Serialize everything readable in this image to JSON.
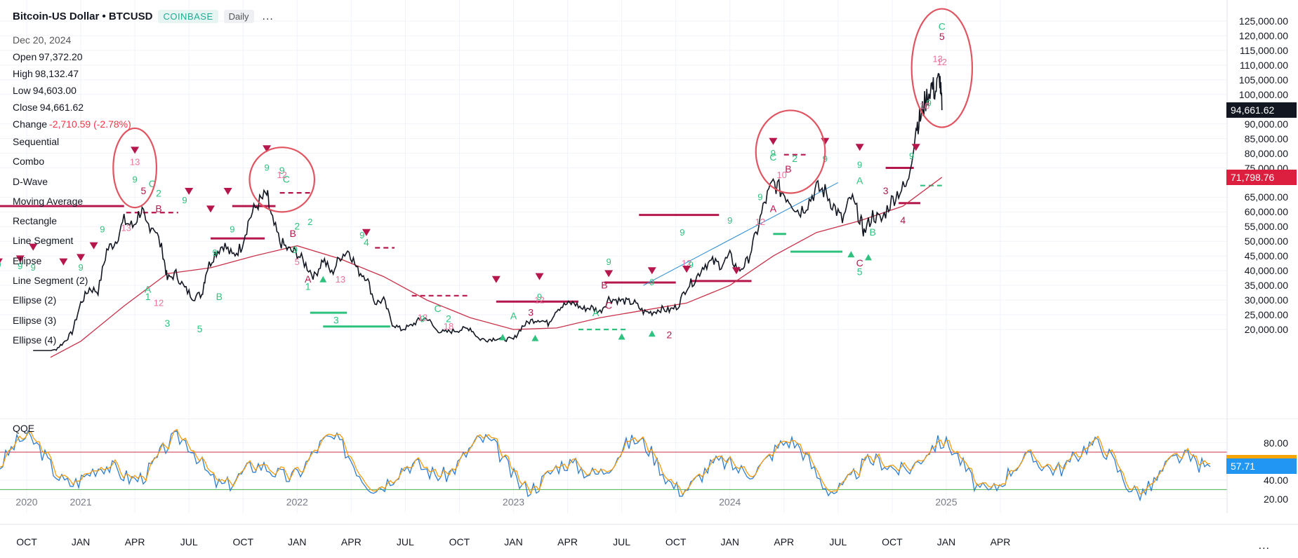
{
  "header": {
    "symbol_title": "Bitcoin-US Dollar • BTCUSD",
    "exchange_badge": "COINBASE",
    "interval_badge": "Daily",
    "more_label": "..."
  },
  "ohlc": {
    "date": "Dec 20, 2024",
    "open_label": "Open",
    "open_value": "97,372.20",
    "high_label": "High",
    "high_value": "98,132.47",
    "low_label": "Low",
    "low_value": "94,603.00",
    "close_label": "Close",
    "close_value": "94,661.62",
    "change_label": "Change",
    "change_value": "-2,710.59 (-2.78%)"
  },
  "indicators": [
    "Sequential",
    "Combo",
    "D-Wave",
    "Moving Average",
    "Rectangle",
    "Line Segment",
    "Ellipse",
    "Line Segment (2)",
    "Ellipse (2)",
    "Ellipse (3)",
    "Ellipse (4)"
  ],
  "price_axis": {
    "ticks": [
      "125,000.00",
      "120,000.00",
      "115,000.00",
      "110,000.00",
      "105,000.00",
      "100,000.00",
      "90,000.00",
      "85,000.00",
      "80,000.00",
      "75,000.00",
      "65,000.00",
      "60,000.00",
      "55,000.00",
      "50,000.00",
      "45,000.00",
      "40,000.00",
      "35,000.00",
      "30,000.00",
      "25,000.00",
      "20,000.00"
    ],
    "tick_values": [
      125000,
      120000,
      115000,
      110000,
      105000,
      100000,
      90000,
      85000,
      80000,
      75000,
      65000,
      60000,
      55000,
      50000,
      45000,
      40000,
      35000,
      30000,
      25000,
      20000
    ],
    "last_price": "94,661.62",
    "ma_value": "71,798.76"
  },
  "oscillator": {
    "name": "QQE",
    "ticks": [
      "80.00",
      "40.00",
      "20.00"
    ],
    "tick_values": [
      80,
      40,
      20
    ],
    "value_label": "57.71",
    "value": 57.71,
    "upper_level": 70,
    "lower_level": 30
  },
  "time_axis": {
    "labels": [
      "OCT",
      "JAN",
      "APR",
      "JUL",
      "OCT",
      "JAN",
      "APR",
      "JUL",
      "OCT",
      "JAN",
      "APR",
      "JUL",
      "OCT",
      "JAN",
      "APR",
      "JUL",
      "OCT",
      "JAN",
      "APR"
    ],
    "year_labels": [
      "2020",
      "2021",
      "2022",
      "2023",
      "2024",
      "2025"
    ],
    "menu": "..."
  },
  "colors": {
    "price": "#131722",
    "ma": "#c8324a",
    "bullish": "#2ec27e",
    "bearish": "#b5174d",
    "setup_pink": "#e8749a",
    "ellipse": "#e05561",
    "qqe_fast": "#f39c12",
    "qqe_slow": "#2d7dd2",
    "level_upper": "#c8324a",
    "level_lower": "#4caf50"
  },
  "price_path": [
    [
      2020.78,
      10500
    ],
    [
      2020.83,
      11300
    ],
    [
      2020.88,
      13000
    ],
    [
      2020.92,
      15500
    ],
    [
      2020.96,
      19000
    ],
    [
      2021.0,
      29000
    ],
    [
      2021.04,
      34000
    ],
    [
      2021.08,
      33000
    ],
    [
      2021.12,
      47000
    ],
    [
      2021.16,
      50000
    ],
    [
      2021.2,
      57000
    ],
    [
      2021.24,
      55000
    ],
    [
      2021.28,
      61000
    ],
    [
      2021.3,
      56000
    ],
    [
      2021.34,
      55000
    ],
    [
      2021.38,
      46000
    ],
    [
      2021.4,
      37000
    ],
    [
      2021.44,
      39000
    ],
    [
      2021.48,
      34000
    ],
    [
      2021.52,
      31000
    ],
    [
      2021.56,
      32000
    ],
    [
      2021.58,
      40000
    ],
    [
      2021.62,
      46000
    ],
    [
      2021.66,
      49000
    ],
    [
      2021.7,
      45000
    ],
    [
      2021.74,
      48000
    ],
    [
      2021.78,
      58000
    ],
    [
      2021.82,
      63000
    ],
    [
      2021.86,
      66000
    ],
    [
      2021.88,
      58000
    ],
    [
      2021.92,
      50000
    ],
    [
      2021.96,
      47000
    ],
    [
      2022.0,
      46000
    ],
    [
      2022.04,
      42000
    ],
    [
      2022.08,
      38000
    ],
    [
      2022.12,
      44000
    ],
    [
      2022.16,
      39000
    ],
    [
      2022.2,
      45000
    ],
    [
      2022.24,
      47000
    ],
    [
      2022.28,
      40000
    ],
    [
      2022.32,
      38000
    ],
    [
      2022.36,
      29000
    ],
    [
      2022.4,
      30000
    ],
    [
      2022.44,
      22000
    ],
    [
      2022.48,
      20000
    ],
    [
      2022.52,
      21000
    ],
    [
      2022.56,
      23000
    ],
    [
      2022.6,
      24000
    ],
    [
      2022.64,
      20000
    ],
    [
      2022.68,
      19000
    ],
    [
      2022.72,
      19500
    ],
    [
      2022.76,
      20000
    ],
    [
      2022.8,
      20500
    ],
    [
      2022.84,
      16800
    ],
    [
      2022.88,
      16500
    ],
    [
      2022.92,
      17000
    ],
    [
      2022.96,
      16700
    ],
    [
      2023.0,
      16600
    ],
    [
      2023.04,
      21000
    ],
    [
      2023.08,
      23000
    ],
    [
      2023.12,
      23500
    ],
    [
      2023.16,
      22000
    ],
    [
      2023.2,
      27000
    ],
    [
      2023.24,
      28500
    ],
    [
      2023.28,
      29000
    ],
    [
      2023.32,
      27000
    ],
    [
      2023.36,
      27500
    ],
    [
      2023.4,
      26000
    ],
    [
      2023.44,
      30500
    ],
    [
      2023.48,
      30000
    ],
    [
      2023.52,
      29500
    ],
    [
      2023.56,
      29000
    ],
    [
      2023.6,
      26000
    ],
    [
      2023.64,
      25800
    ],
    [
      2023.68,
      27000
    ],
    [
      2023.72,
      26500
    ],
    [
      2023.76,
      28000
    ],
    [
      2023.8,
      34500
    ],
    [
      2023.84,
      37000
    ],
    [
      2023.88,
      42000
    ],
    [
      2023.92,
      43000
    ],
    [
      2023.96,
      42000
    ],
    [
      2024.0,
      45000
    ],
    [
      2024.04,
      40000
    ],
    [
      2024.08,
      43000
    ],
    [
      2024.12,
      52000
    ],
    [
      2024.16,
      63000
    ],
    [
      2024.2,
      70000
    ],
    [
      2024.24,
      67000
    ],
    [
      2024.28,
      64000
    ],
    [
      2024.32,
      60000
    ],
    [
      2024.36,
      63000
    ],
    [
      2024.4,
      68000
    ],
    [
      2024.44,
      67000
    ],
    [
      2024.48,
      62000
    ],
    [
      2024.52,
      57000
    ],
    [
      2024.56,
      65000
    ],
    [
      2024.6,
      58000
    ],
    [
      2024.62,
      53000
    ],
    [
      2024.66,
      59000
    ],
    [
      2024.7,
      57000
    ],
    [
      2024.74,
      63000
    ],
    [
      2024.78,
      67000
    ],
    [
      2024.82,
      69000
    ],
    [
      2024.86,
      89000
    ],
    [
      2024.88,
      92000
    ],
    [
      2024.9,
      97000
    ],
    [
      2024.93,
      103000
    ],
    [
      2024.95,
      101000
    ],
    [
      2024.97,
      106000
    ],
    [
      2024.98,
      94661
    ]
  ],
  "ma_path": [
    [
      2020.86,
      10500
    ],
    [
      2021.0,
      16000
    ],
    [
      2021.2,
      28000
    ],
    [
      2021.4,
      39000
    ],
    [
      2021.6,
      41000
    ],
    [
      2021.8,
      45000
    ],
    [
      2022.0,
      48500
    ],
    [
      2022.2,
      44000
    ],
    [
      2022.4,
      38000
    ],
    [
      2022.6,
      30000
    ],
    [
      2022.8,
      24000
    ],
    [
      2023.0,
      20000
    ],
    [
      2023.2,
      20500
    ],
    [
      2023.4,
      24000
    ],
    [
      2023.6,
      26500
    ],
    [
      2023.8,
      29000
    ],
    [
      2024.0,
      35000
    ],
    [
      2024.2,
      45000
    ],
    [
      2024.4,
      53000
    ],
    [
      2024.6,
      57000
    ],
    [
      2024.8,
      62000
    ],
    [
      2024.98,
      71798.76
    ]
  ],
  "trendline": [
    [
      2023.6,
      35000
    ],
    [
      2024.5,
      70000
    ]
  ],
  "ellipses": [
    {
      "t": 2021.25,
      "p": 75000,
      "rt": 0.1,
      "pl": 0.72
    },
    {
      "t": 2021.93,
      "p": 71000,
      "rt": 0.15,
      "pl": 0.62
    },
    {
      "t": 2024.28,
      "p": 80500,
      "rt": 0.16,
      "pl": 0.7
    },
    {
      "t": 2024.98,
      "p": 109000,
      "rt": 0.14,
      "pl": 0.74
    }
  ],
  "levels": [
    {
      "t1": 2020.62,
      "t2": 2021.2,
      "p": 62000,
      "c": "bearish",
      "s": "solid"
    },
    {
      "t1": 2021.21,
      "t2": 2021.45,
      "p": 59800,
      "c": "bearish",
      "s": "dashed"
    },
    {
      "t1": 2021.6,
      "t2": 2021.85,
      "p": 51000,
      "c": "bearish",
      "s": "solid"
    },
    {
      "t1": 2021.7,
      "t2": 2021.9,
      "p": 62000,
      "c": "bearish",
      "s": "solid"
    },
    {
      "t1": 2021.92,
      "t2": 2022.07,
      "p": 66500,
      "c": "bearish",
      "s": "dashed"
    },
    {
      "t1": 2022.06,
      "t2": 2022.23,
      "p": 25700,
      "c": "bullish",
      "s": "solid"
    },
    {
      "t1": 2022.12,
      "t2": 2022.43,
      "p": 21000,
      "c": "bullish",
      "s": "solid"
    },
    {
      "t1": 2022.36,
      "t2": 2022.45,
      "p": 47800,
      "c": "bearish",
      "s": "dashed"
    },
    {
      "t1": 2022.53,
      "t2": 2022.8,
      "p": 31500,
      "c": "bearish",
      "s": "dashed"
    },
    {
      "t1": 2022.92,
      "t2": 2023.3,
      "p": 29500,
      "c": "bearish",
      "s": "solid"
    },
    {
      "t1": 2023.3,
      "t2": 2023.52,
      "p": 20000,
      "c": "bullish",
      "s": "dashed"
    },
    {
      "t1": 2023.42,
      "t2": 2023.75,
      "p": 36000,
      "c": "bearish",
      "s": "solid"
    },
    {
      "t1": 2023.58,
      "t2": 2023.95,
      "p": 59000,
      "c": "bearish",
      "s": "solid"
    },
    {
      "t1": 2023.82,
      "t2": 2024.1,
      "p": 36500,
      "c": "bearish",
      "s": "solid"
    },
    {
      "t1": 2024.2,
      "t2": 2024.26,
      "p": 52500,
      "c": "bullish",
      "s": "solid"
    },
    {
      "t1": 2024.28,
      "t2": 2024.52,
      "p": 46500,
      "c": "bullish",
      "s": "solid"
    },
    {
      "t1": 2024.25,
      "t2": 2024.35,
      "p": 79500,
      "c": "bearish",
      "s": "dashed"
    },
    {
      "t1": 2024.72,
      "t2": 2024.85,
      "p": 75000,
      "c": "bearish",
      "s": "solid"
    },
    {
      "t1": 2024.78,
      "t2": 2024.88,
      "p": 63000,
      "c": "bearish",
      "s": "solid"
    },
    {
      "t1": 2024.88,
      "t2": 2024.98,
      "p": 69000,
      "c": "bullish",
      "s": "dashed"
    }
  ],
  "wave_labels": [
    {
      "t": 2021.33,
      "p": 68500,
      "text": "C",
      "c": "bullish"
    },
    {
      "t": 2021.29,
      "p": 66000,
      "text": "5",
      "c": "bearish"
    },
    {
      "t": 2021.36,
      "p": 65200,
      "text": "2",
      "c": "bullish"
    },
    {
      "t": 2021.36,
      "p": 60000,
      "text": "B",
      "c": "bearish"
    },
    {
      "t": 2021.31,
      "p": 32500,
      "text": "A",
      "c": "bullish"
    },
    {
      "t": 2021.31,
      "p": 30000,
      "text": "1",
      "c": "bullish"
    },
    {
      "t": 2021.4,
      "p": 21000,
      "text": "3",
      "c": "bullish"
    },
    {
      "t": 2021.55,
      "p": 19000,
      "text": "5",
      "c": "bullish"
    },
    {
      "t": 2021.64,
      "p": 30000,
      "text": "B",
      "c": "bullish"
    },
    {
      "t": 2021.95,
      "p": 70000,
      "text": "C",
      "c": "bullish"
    },
    {
      "t": 2021.93,
      "p": 73000,
      "text": "9",
      "c": "bullish"
    },
    {
      "t": 2022.0,
      "p": 54000,
      "text": "2",
      "c": "bullish"
    },
    {
      "t": 2021.98,
      "p": 51500,
      "text": "B",
      "c": "bearish"
    },
    {
      "t": 2021.99,
      "p": 46000,
      "text": "9",
      "c": "bullish"
    },
    {
      "t": 2022.05,
      "p": 36000,
      "text": "A",
      "c": "bearish"
    },
    {
      "t": 2022.05,
      "p": 33500,
      "text": "1",
      "c": "bullish"
    },
    {
      "t": 2022.18,
      "p": 22000,
      "text": "3",
      "c": "bullish"
    },
    {
      "t": 2022.32,
      "p": 48500,
      "text": "4",
      "c": "bullish"
    },
    {
      "t": 2022.65,
      "p": 26000,
      "text": "C",
      "c": "bullish"
    },
    {
      "t": 2022.7,
      "p": 22500,
      "text": "2",
      "c": "bullish"
    },
    {
      "t": 2023.0,
      "p": 23500,
      "text": "A",
      "c": "bullish"
    },
    {
      "t": 2023.08,
      "p": 24600,
      "text": "3",
      "c": "bearish"
    },
    {
      "t": 2023.42,
      "p": 34000,
      "text": "B",
      "c": "bearish"
    },
    {
      "t": 2023.44,
      "p": 27000,
      "text": "C",
      "c": "bearish"
    },
    {
      "t": 2023.38,
      "p": 24500,
      "text": "A",
      "c": "bullish"
    },
    {
      "t": 2023.72,
      "p": 17000,
      "text": "2",
      "c": "bearish"
    },
    {
      "t": 2024.2,
      "p": 77500,
      "text": "C",
      "c": "bullish"
    },
    {
      "t": 2024.3,
      "p": 77000,
      "text": "2",
      "c": "bullish"
    },
    {
      "t": 2024.27,
      "p": 73500,
      "text": "B",
      "c": "bearish"
    },
    {
      "t": 2024.2,
      "p": 60000,
      "text": "A",
      "c": "bearish"
    },
    {
      "t": 2024.6,
      "p": 69500,
      "text": "A",
      "c": "bullish"
    },
    {
      "t": 2024.6,
      "p": 41500,
      "text": "C",
      "c": "bearish"
    },
    {
      "t": 2024.6,
      "p": 38500,
      "text": "5",
      "c": "bullish"
    },
    {
      "t": 2024.66,
      "p": 52000,
      "text": "B",
      "c": "bullish"
    },
    {
      "t": 2024.72,
      "p": 66000,
      "text": "3",
      "c": "bearish"
    },
    {
      "t": 2024.8,
      "p": 56000,
      "text": "4",
      "c": "bearish"
    },
    {
      "t": 2024.98,
      "p": 122000,
      "text": "C",
      "c": "bullish"
    },
    {
      "t": 2024.98,
      "p": 118500,
      "text": "5",
      "c": "bearish"
    }
  ],
  "arrows_down": [
    [
      2020.62,
      43000
    ],
    [
      2020.72,
      44000
    ],
    [
      2020.78,
      48000
    ],
    [
      2020.92,
      43000
    ],
    [
      2021.0,
      44500
    ],
    [
      2021.06,
      48500
    ],
    [
      2021.25,
      81000
    ],
    [
      2021.5,
      67000
    ],
    [
      2021.6,
      61000
    ],
    [
      2021.68,
      67000
    ],
    [
      2021.86,
      81500
    ],
    [
      2022.32,
      53000
    ],
    [
      2022.92,
      37000
    ],
    [
      2023.12,
      38000
    ],
    [
      2023.44,
      39000
    ],
    [
      2023.64,
      40000
    ],
    [
      2023.8,
      40500
    ],
    [
      2024.03,
      40000
    ],
    [
      2024.2,
      84000
    ],
    [
      2024.44,
      84000
    ],
    [
      2024.6,
      82000
    ],
    [
      2024.86,
      82000
    ]
  ],
  "arrows_up": [
    [
      2024.56,
      45500
    ],
    [
      2024.64,
      44500
    ],
    [
      2023.64,
      18500
    ],
    [
      2023.5,
      17500
    ],
    [
      2022.12,
      37000
    ],
    [
      2023.1,
      17000
    ],
    [
      2022.95,
      17300
    ]
  ],
  "setup_counts_green": [
    [
      2020.62,
      41000,
      "9"
    ],
    [
      2020.72,
      40500,
      "9"
    ],
    [
      2020.78,
      40000,
      "9"
    ],
    [
      2021.0,
      40000,
      "9"
    ],
    [
      2021.1,
      53000,
      "9"
    ],
    [
      2021.25,
      70000,
      "9"
    ],
    [
      2021.48,
      63000,
      "9"
    ],
    [
      2021.62,
      45000,
      "9"
    ],
    [
      2021.7,
      53000,
      "9"
    ],
    [
      2021.86,
      74000,
      "9"
    ],
    [
      2022.06,
      55500,
      "2"
    ],
    [
      2022.3,
      51000,
      "9"
    ],
    [
      2022.58,
      22500,
      "9"
    ],
    [
      2023.12,
      30000,
      "9"
    ],
    [
      2023.44,
      42000,
      "9"
    ],
    [
      2023.64,
      35000,
      "9"
    ],
    [
      2023.78,
      52000,
      "9"
    ],
    [
      2023.82,
      41000,
      "9"
    ],
    [
      2024.0,
      56000,
      "9"
    ],
    [
      2024.14,
      64000,
      "9"
    ],
    [
      2024.2,
      79000,
      "9"
    ],
    [
      2024.44,
      77000,
      "9"
    ],
    [
      2024.6,
      75000,
      "9"
    ],
    [
      2024.84,
      78000,
      "9"
    ],
    [
      2024.92,
      96000,
      "9"
    ]
  ],
  "setup_counts_red": [
    [
      2021.25,
      76000,
      "13"
    ],
    [
      2021.21,
      53500,
      "13"
    ],
    [
      2021.36,
      28000,
      "12"
    ],
    [
      2021.93,
      71500,
      "12"
    ],
    [
      2022.0,
      42000,
      "5"
    ],
    [
      2022.2,
      36000,
      "13"
    ],
    [
      2022.58,
      23000,
      "13"
    ],
    [
      2022.7,
      20000,
      "18"
    ],
    [
      2023.12,
      29000,
      "12"
    ],
    [
      2023.8,
      41500,
      "12"
    ],
    [
      2024.14,
      55500,
      "12"
    ],
    [
      2024.24,
      71500,
      "10"
    ],
    [
      2024.96,
      111000,
      "13"
    ],
    [
      2024.98,
      110000,
      "12"
    ],
    [
      2024.9,
      95000,
      "10"
    ]
  ]
}
